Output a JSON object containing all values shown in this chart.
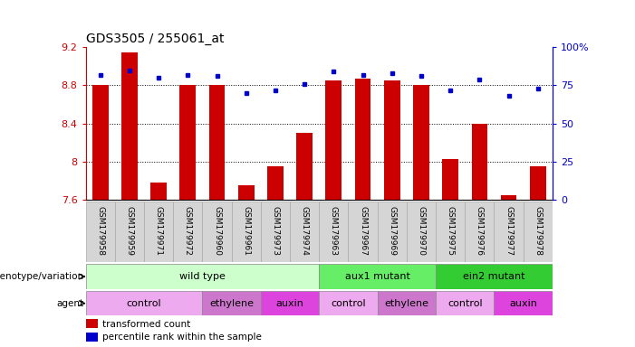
{
  "title": "GDS3505 / 255061_at",
  "samples": [
    "GSM179958",
    "GSM179959",
    "GSM179971",
    "GSM179972",
    "GSM179960",
    "GSM179961",
    "GSM179973",
    "GSM179974",
    "GSM179963",
    "GSM179967",
    "GSM179969",
    "GSM179970",
    "GSM179975",
    "GSM179976",
    "GSM179977",
    "GSM179978"
  ],
  "bar_values": [
    8.8,
    9.15,
    7.78,
    8.8,
    8.8,
    7.75,
    7.95,
    8.3,
    8.85,
    8.87,
    8.85,
    8.8,
    8.03,
    8.4,
    7.65,
    7.95
  ],
  "percentile_values": [
    82,
    85,
    80,
    82,
    81,
    70,
    72,
    76,
    84,
    82,
    83,
    81,
    72,
    79,
    68,
    73
  ],
  "bar_color": "#cc0000",
  "percentile_color": "#0000cc",
  "ymin": 7.6,
  "ymax": 9.2,
  "yticks": [
    7.6,
    8.0,
    8.4,
    8.8,
    9.2
  ],
  "ytick_labels": [
    "7.6",
    "8",
    "8.4",
    "8.8",
    "9.2"
  ],
  "y2min": 0,
  "y2max": 100,
  "y2ticks": [
    0,
    25,
    50,
    75,
    100
  ],
  "y2tick_labels": [
    "0",
    "25",
    "50",
    "75",
    "100%"
  ],
  "grid_lines": [
    8.0,
    8.4,
    8.8
  ],
  "genotype_groups": [
    {
      "label": "wild type",
      "start": 0,
      "end": 8,
      "color": "#ccffcc"
    },
    {
      "label": "aux1 mutant",
      "start": 8,
      "end": 12,
      "color": "#66ee66"
    },
    {
      "label": "ein2 mutant",
      "start": 12,
      "end": 16,
      "color": "#33cc33"
    }
  ],
  "agent_groups": [
    {
      "label": "control",
      "start": 0,
      "end": 4,
      "color": "#eeaaee"
    },
    {
      "label": "ethylene",
      "start": 4,
      "end": 6,
      "color": "#cc77cc"
    },
    {
      "label": "auxin",
      "start": 6,
      "end": 8,
      "color": "#dd44dd"
    },
    {
      "label": "control",
      "start": 8,
      "end": 10,
      "color": "#eeaaee"
    },
    {
      "label": "ethylene",
      "start": 10,
      "end": 12,
      "color": "#cc77cc"
    },
    {
      "label": "control",
      "start": 12,
      "end": 14,
      "color": "#eeaaee"
    },
    {
      "label": "auxin",
      "start": 14,
      "end": 16,
      "color": "#dd44dd"
    }
  ],
  "background_color": "#ffffff"
}
